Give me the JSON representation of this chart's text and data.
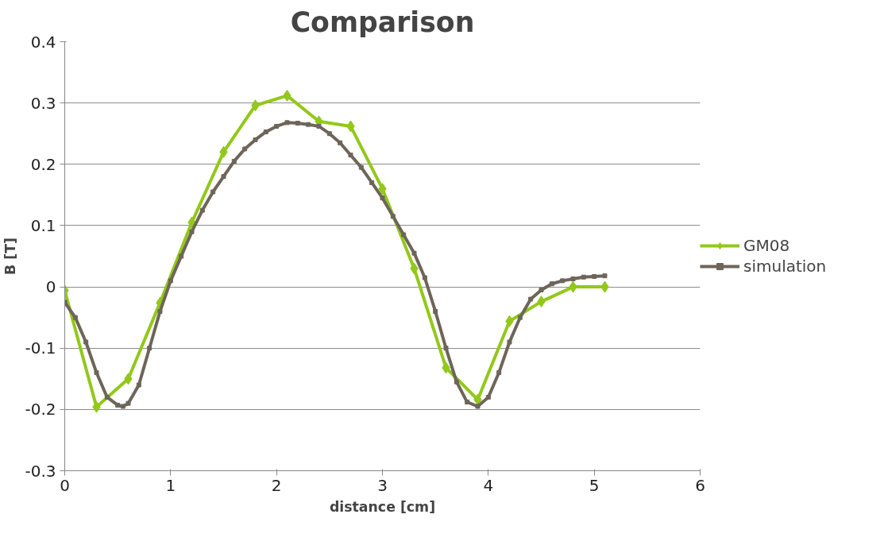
{
  "chart_data": {
    "type": "line",
    "title": "Comparison",
    "xlabel": "distance [cm]",
    "ylabel": "B [T]",
    "xlim": [
      0,
      6
    ],
    "xticks": [
      0,
      1,
      2,
      3,
      4,
      5,
      6
    ],
    "ylim": [
      -0.3,
      0.4
    ],
    "yticks": [
      -0.3,
      -0.2,
      -0.1,
      0,
      0.1,
      0.2,
      0.3,
      0.4
    ],
    "grid": "y",
    "legend": "right",
    "series": [
      {
        "name": "GM08",
        "color": "#92c81a",
        "marker": "diamond",
        "x": [
          0,
          0.3,
          0.6,
          0.9,
          1.2,
          1.5,
          1.8,
          2.1,
          2.4,
          2.7,
          3.0,
          3.3,
          3.6,
          3.9,
          4.2,
          4.5,
          4.8,
          5.1
        ],
        "values": [
          -0.006,
          -0.196,
          -0.15,
          -0.026,
          0.105,
          0.22,
          0.296,
          0.312,
          0.27,
          0.262,
          0.16,
          0.03,
          -0.132,
          -0.184,
          -0.056,
          -0.024,
          0,
          0
        ]
      },
      {
        "name": "simulation",
        "color": "#6e655a",
        "marker": "square",
        "x": [
          0,
          0.1,
          0.2,
          0.3,
          0.4,
          0.5,
          0.55,
          0.6,
          0.7,
          0.8,
          0.9,
          1.0,
          1.1,
          1.2,
          1.3,
          1.4,
          1.5,
          1.6,
          1.7,
          1.8,
          1.9,
          2.0,
          2.1,
          2.2,
          2.3,
          2.4,
          2.5,
          2.6,
          2.7,
          2.8,
          2.9,
          3.0,
          3.1,
          3.2,
          3.3,
          3.4,
          3.5,
          3.6,
          3.7,
          3.8,
          3.9,
          4.0,
          4.1,
          4.2,
          4.3,
          4.4,
          4.5,
          4.6,
          4.7,
          4.8,
          4.9,
          5.0,
          5.1
        ],
        "values": [
          -0.025,
          -0.05,
          -0.09,
          -0.14,
          -0.18,
          -0.193,
          -0.195,
          -0.19,
          -0.16,
          -0.1,
          -0.04,
          0.01,
          0.05,
          0.09,
          0.125,
          0.155,
          0.18,
          0.205,
          0.225,
          0.24,
          0.253,
          0.262,
          0.268,
          0.267,
          0.265,
          0.262,
          0.25,
          0.235,
          0.215,
          0.195,
          0.17,
          0.145,
          0.115,
          0.085,
          0.055,
          0.015,
          -0.04,
          -0.1,
          -0.155,
          -0.188,
          -0.195,
          -0.18,
          -0.14,
          -0.09,
          -0.05,
          -0.02,
          -0.005,
          0.005,
          0.01,
          0.013,
          0.016,
          0.017,
          0.018
        ]
      }
    ]
  }
}
